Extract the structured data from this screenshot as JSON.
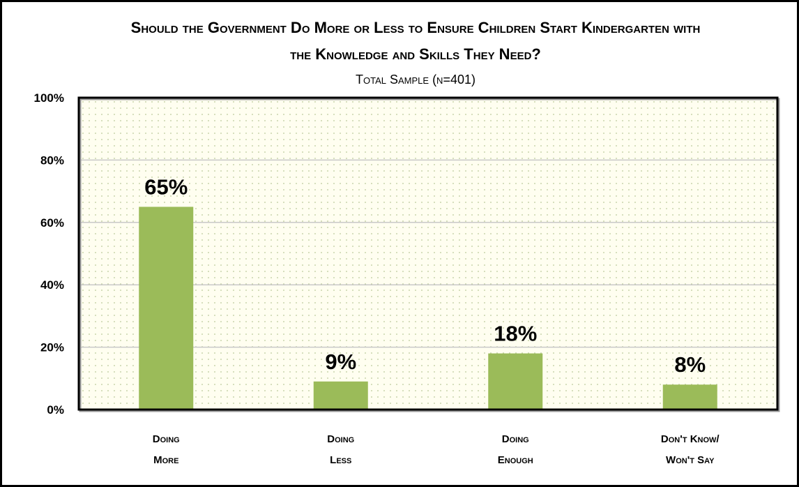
{
  "chart_data": {
    "type": "bar",
    "title_lines": [
      "Should the Government Do More or Less to Ensure Children Start Kindergarten with",
      "the Knowledge and Skills They Need?"
    ],
    "subtitle": "Total Sample (n=401)",
    "categories": [
      [
        "Doing",
        "More"
      ],
      [
        "Doing",
        "Less"
      ],
      [
        "Doing",
        "Enough"
      ],
      [
        "Don't Know/",
        "Won't Say"
      ]
    ],
    "values": [
      65,
      9,
      18,
      8
    ],
    "data_labels": [
      "65%",
      "9%",
      "18%",
      "8%"
    ],
    "yticks": [
      0,
      20,
      40,
      60,
      80,
      100
    ],
    "ytick_labels": [
      "0%",
      "20%",
      "40%",
      "60%",
      "80%",
      "100%"
    ],
    "ylim": [
      0,
      100
    ],
    "grid": true,
    "bar_color": "#9BBB59",
    "plot_background": "#FFFEF0"
  }
}
